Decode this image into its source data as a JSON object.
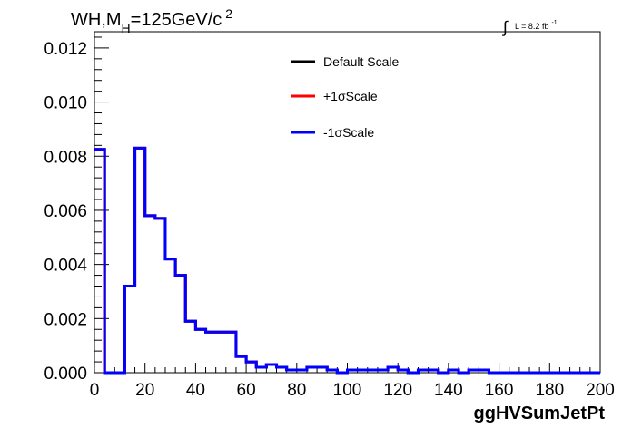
{
  "chart_data": {
    "type": "line",
    "title": "WH,M",
    "title_sub": "H",
    "title_rest": "=125GeV/c",
    "title_sup": "2",
    "xlabel": "ggHVSumJetPt",
    "ylabel": "",
    "xlim": [
      0,
      200
    ],
    "ylim": [
      0,
      0.0126
    ],
    "x_ticks": [
      0,
      20,
      40,
      60,
      80,
      100,
      120,
      140,
      160,
      180,
      200
    ],
    "x_tick_labels": [
      "0",
      "20",
      "40",
      "60",
      "80",
      "100",
      "120",
      "140",
      "160",
      "180",
      "200"
    ],
    "y_ticks": [
      0,
      0.002,
      0.004,
      0.006,
      0.008,
      0.01,
      0.012
    ],
    "y_tick_labels": [
      "0.000",
      "0.002",
      "0.004",
      "0.006",
      "0.008",
      "0.010",
      "0.012"
    ],
    "lumi_label": "L = 8.2 fb",
    "lumi_sup": "-1",
    "grid": false,
    "legend_position": "top-right",
    "bin_edges": [
      0,
      4,
      8,
      12,
      16,
      20,
      24,
      28,
      32,
      36,
      40,
      44,
      48,
      52,
      56,
      60,
      64,
      68,
      72,
      76,
      80,
      84,
      88,
      92,
      96,
      100,
      104,
      108,
      112,
      116,
      120,
      124,
      128,
      132,
      136,
      140,
      144,
      148,
      152,
      156,
      160,
      164,
      168,
      172,
      176,
      180,
      184,
      188,
      192,
      196,
      200
    ],
    "series": [
      {
        "name": "Default Scale",
        "color": "#000000",
        "values": [
          0.00825,
          0.0,
          0.0,
          0.0032,
          0.0083,
          0.0058,
          0.0057,
          0.0042,
          0.0036,
          0.0019,
          0.0016,
          0.0015,
          0.0015,
          0.0015,
          0.0006,
          0.0004,
          0.0002,
          0.0003,
          0.0002,
          0.0001,
          0.0001,
          0.0002,
          0.0002,
          0.0001,
          0.0,
          0.0001,
          0.0001,
          0.0001,
          0.0001,
          0.0002,
          0.0001,
          0.0,
          0.0001,
          0.0001,
          0.0,
          0.0001,
          0.0,
          0.0001,
          0.0001,
          0.0,
          0.0,
          0.0,
          0.0,
          0.0,
          0.0,
          0.0,
          0.0,
          0.0,
          0.0,
          0.0
        ]
      },
      {
        "name": "+1σScale",
        "color": "#ff0000",
        "values": [
          0.00825,
          0.0,
          0.0,
          0.0032,
          0.0083,
          0.0058,
          0.0057,
          0.0042,
          0.0036,
          0.0019,
          0.0016,
          0.0015,
          0.0015,
          0.0015,
          0.0006,
          0.0004,
          0.0002,
          0.0003,
          0.0002,
          0.0001,
          0.0001,
          0.0002,
          0.0002,
          0.0001,
          0.0,
          0.0001,
          0.0001,
          0.0001,
          0.0001,
          0.0002,
          0.0001,
          0.0,
          0.0001,
          0.0001,
          0.0,
          0.0001,
          0.0,
          0.0001,
          0.0001,
          0.0,
          0.0,
          0.0,
          0.0,
          0.0,
          0.0,
          0.0,
          0.0,
          0.0,
          0.0,
          0.0
        ]
      },
      {
        "name": "-1σScale",
        "color": "#0000ff",
        "values": [
          0.00825,
          0.0,
          0.0,
          0.0032,
          0.0083,
          0.0058,
          0.0057,
          0.0042,
          0.0036,
          0.0019,
          0.0016,
          0.0015,
          0.0015,
          0.0015,
          0.0006,
          0.0004,
          0.0002,
          0.0003,
          0.0002,
          0.0001,
          0.0001,
          0.0002,
          0.0002,
          0.0001,
          0.0,
          0.0001,
          0.0001,
          0.0001,
          0.0001,
          0.0002,
          0.0001,
          0.0,
          0.0001,
          0.0001,
          0.0,
          0.0001,
          0.0,
          0.0001,
          0.0001,
          0.0,
          0.0,
          0.0,
          0.0,
          0.0,
          0.0,
          0.0,
          0.0,
          0.0,
          0.0,
          0.0
        ]
      }
    ]
  }
}
